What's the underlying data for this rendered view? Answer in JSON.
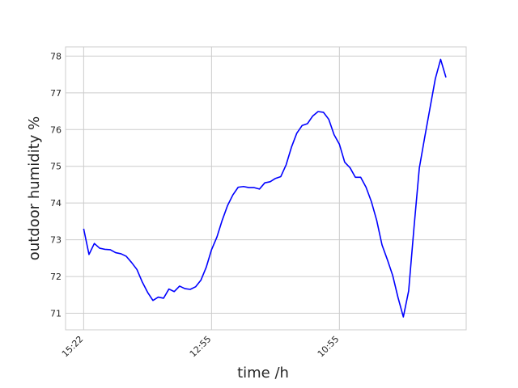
{
  "chart_data": {
    "type": "line",
    "xlabel": "time /h",
    "ylabel": "outdoor humidity   %",
    "x_tick_labels": [
      "15:22",
      "12:55",
      "10:55"
    ],
    "x_tick_indices": [
      0,
      24,
      48
    ],
    "y_ticks": [
      71,
      72,
      73,
      74,
      75,
      76,
      77,
      78
    ],
    "ylim": [
      70.55,
      78.25
    ],
    "xlim": [
      -3.4,
      71.8
    ],
    "grid": true,
    "line_color": "#0000ff",
    "series": [
      {
        "values": [
          73.3,
          72.6,
          72.9,
          72.77,
          72.74,
          72.73,
          72.65,
          72.62,
          72.55,
          72.38,
          72.19,
          71.85,
          71.57,
          71.35,
          71.44,
          71.41,
          71.66,
          71.59,
          71.74,
          71.67,
          71.65,
          71.72,
          71.9,
          72.25,
          72.73,
          73.07,
          73.53,
          73.93,
          74.22,
          74.43,
          74.45,
          74.42,
          74.42,
          74.38,
          74.55,
          74.58,
          74.67,
          74.72,
          75.04,
          75.52,
          75.9,
          76.11,
          76.16,
          76.37,
          76.49,
          76.47,
          76.28,
          75.86,
          75.6,
          75.11,
          74.96,
          74.7,
          74.7,
          74.43,
          74.04,
          73.53,
          72.86,
          72.46,
          72.03,
          71.43,
          70.9,
          71.61,
          73.33,
          74.95,
          75.78,
          76.58,
          77.38,
          77.91,
          77.42
        ]
      }
    ]
  }
}
